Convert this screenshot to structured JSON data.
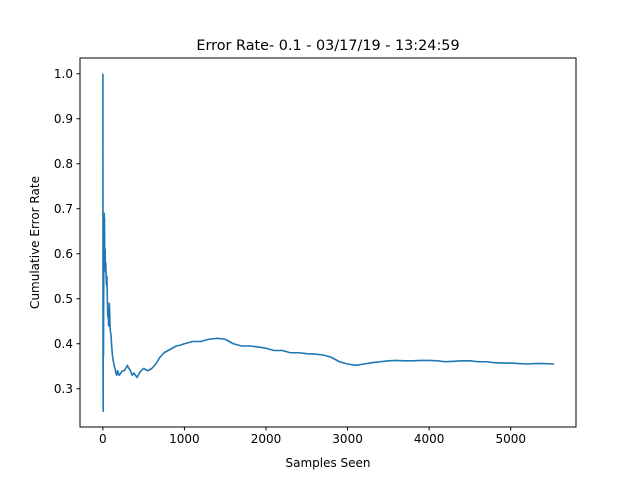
{
  "chart_data": {
    "type": "line",
    "title": "Error Rate- 0.1 - 03/17/19 - 13:24:59",
    "xlabel": "Samples Seen",
    "ylabel": "Cumulative Error Rate",
    "xlim": [
      -280,
      5800
    ],
    "ylim": [
      0.215,
      1.035
    ],
    "xticks": [
      0,
      1000,
      2000,
      3000,
      4000,
      5000
    ],
    "yticks": [
      0.3,
      0.4,
      0.5,
      0.6,
      0.7,
      0.8,
      0.9,
      1.0
    ],
    "xtick_labels": [
      "0",
      "1000",
      "2000",
      "3000",
      "4000",
      "5000"
    ],
    "ytick_labels": [
      "0.3",
      "0.4",
      "0.5",
      "0.6",
      "0.7",
      "0.8",
      "0.9",
      "1.0"
    ],
    "grid": false,
    "colors": {
      "series": "#1f77b4",
      "axis": "#000000",
      "background": "#ffffff"
    },
    "series": [
      {
        "color": "#1f77b4",
        "x": [
          1,
          2,
          3,
          4,
          5,
          6,
          7,
          8,
          9,
          10,
          12,
          14,
          16,
          18,
          20,
          22,
          25,
          28,
          32,
          36,
          40,
          45,
          50,
          55,
          60,
          65,
          70,
          80,
          90,
          100,
          110,
          120,
          130,
          140,
          150,
          160,
          170,
          180,
          190,
          200,
          220,
          240,
          260,
          280,
          300,
          320,
          340,
          360,
          380,
          400,
          420,
          440,
          460,
          480,
          500,
          550,
          600,
          650,
          700,
          750,
          800,
          850,
          900,
          950,
          1000,
          1100,
          1200,
          1300,
          1400,
          1500,
          1600,
          1700,
          1800,
          1900,
          2000,
          2100,
          2200,
          2300,
          2400,
          2500,
          2600,
          2700,
          2800,
          2900,
          3000,
          3100,
          3200,
          3300,
          3400,
          3500,
          3600,
          3700,
          3800,
          3900,
          4000,
          4100,
          4200,
          4300,
          4400,
          4500,
          4600,
          4700,
          4800,
          4900,
          5000,
          5100,
          5200,
          5300,
          5400,
          5530
        ],
        "y": [
          1.0,
          0.5,
          0.333,
          0.25,
          0.4,
          0.5,
          0.43,
          0.375,
          0.45,
          0.5,
          0.58,
          0.64,
          0.69,
          0.63,
          0.68,
          0.62,
          0.58,
          0.61,
          0.56,
          0.58,
          0.55,
          0.53,
          0.55,
          0.5,
          0.46,
          0.48,
          0.44,
          0.49,
          0.43,
          0.42,
          0.39,
          0.37,
          0.36,
          0.35,
          0.345,
          0.335,
          0.33,
          0.34,
          0.335,
          0.33,
          0.335,
          0.34,
          0.34,
          0.345,
          0.352,
          0.345,
          0.34,
          0.33,
          0.335,
          0.33,
          0.325,
          0.332,
          0.338,
          0.342,
          0.345,
          0.34,
          0.345,
          0.355,
          0.37,
          0.38,
          0.385,
          0.39,
          0.395,
          0.397,
          0.4,
          0.405,
          0.405,
          0.41,
          0.412,
          0.41,
          0.4,
          0.395,
          0.395,
          0.393,
          0.39,
          0.385,
          0.385,
          0.38,
          0.38,
          0.378,
          0.377,
          0.375,
          0.37,
          0.36,
          0.355,
          0.352,
          0.355,
          0.358,
          0.36,
          0.362,
          0.363,
          0.362,
          0.362,
          0.363,
          0.363,
          0.362,
          0.36,
          0.361,
          0.362,
          0.362,
          0.36,
          0.36,
          0.358,
          0.357,
          0.357,
          0.356,
          0.355,
          0.356,
          0.356,
          0.355
        ]
      }
    ]
  }
}
